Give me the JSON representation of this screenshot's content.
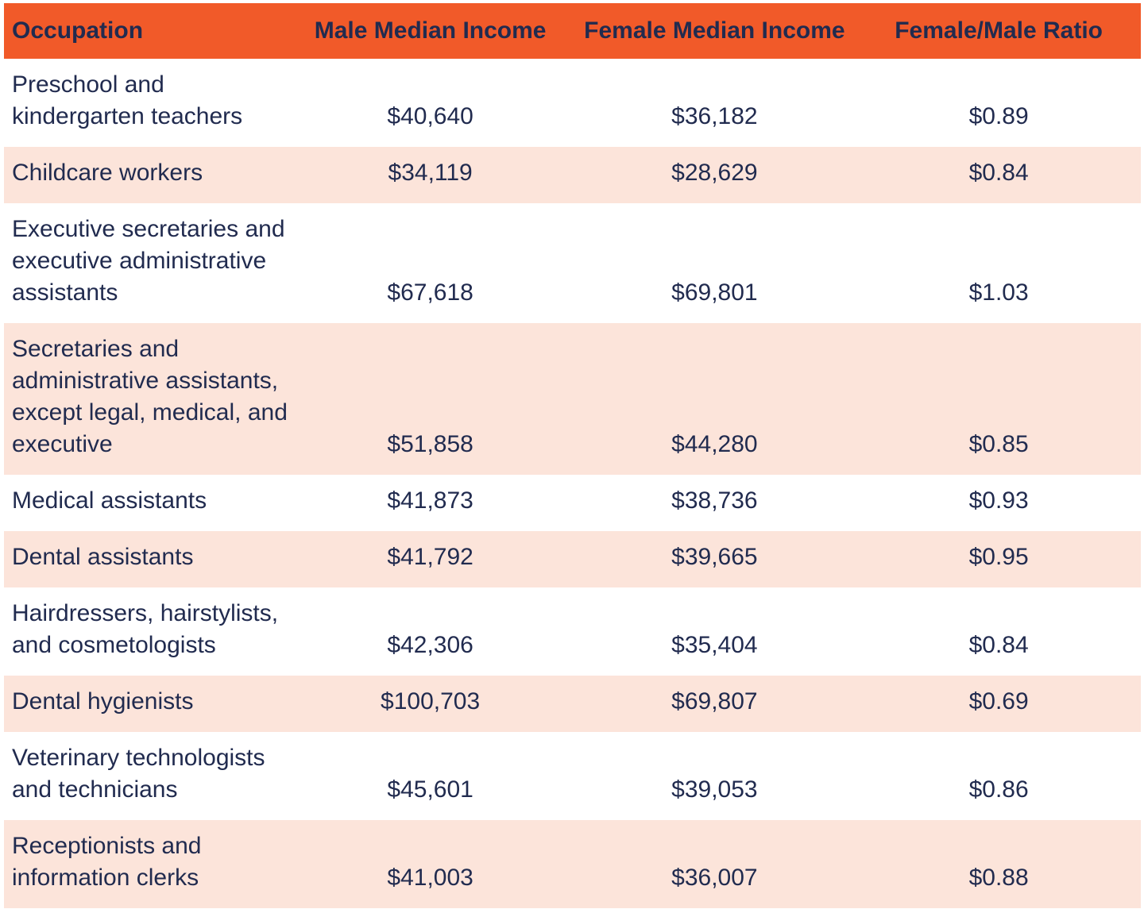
{
  "columns": [
    "Occupation",
    "Male Median Income",
    "Female Median Income",
    "Female/Male Ratio"
  ],
  "rows": [
    {
      "occupation": "Preschool and\nkindergarten teachers",
      "male": "$40,640",
      "female": "$36,182",
      "ratio": "$0.89"
    },
    {
      "occupation": "Childcare workers",
      "male": "$34,119",
      "female": "$28,629",
      "ratio": "$0.84"
    },
    {
      "occupation": "Executive secretaries and\nexecutive administrative\nassistants",
      "male": "$67,618",
      "female": "$69,801",
      "ratio": "$1.03"
    },
    {
      "occupation": "Secretaries and\nadministrative assistants,\nexcept legal, medical, and\nexecutive",
      "male": "$51,858",
      "female": "$44,280",
      "ratio": "$0.85"
    },
    {
      "occupation": "Medical assistants",
      "male": "$41,873",
      "female": "$38,736",
      "ratio": "$0.93"
    },
    {
      "occupation": "Dental assistants",
      "male": "$41,792",
      "female": "$39,665",
      "ratio": "$0.95"
    },
    {
      "occupation": "Hairdressers, hairstylists,\nand cosmetologists",
      "male": "$42,306",
      "female": "$35,404",
      "ratio": "$0.84"
    },
    {
      "occupation": "Dental hygienists",
      "male": "$100,703",
      "female": "$69,807",
      "ratio": "$0.69"
    },
    {
      "occupation": "Veterinary technologists\nand technicians",
      "male": "$45,601",
      "female": "$39,053",
      "ratio": "$0.86"
    },
    {
      "occupation": "Receptionists and\ninformation clerks",
      "male": "$41,003",
      "female": "$36,007",
      "ratio": "$0.88"
    }
  ],
  "colors": {
    "header_bg": "#F15A29",
    "row_bg": "#FFFFFF",
    "row_alt_bg": "#FCE4DA",
    "text": "#212B4F"
  },
  "chart_data": {
    "type": "table",
    "title": "",
    "columns": [
      "Occupation",
      "Male Median Income",
      "Female Median Income",
      "Female/Male Ratio"
    ],
    "rows": [
      [
        "Preschool and kindergarten teachers",
        40640,
        36182,
        0.89
      ],
      [
        "Childcare workers",
        34119,
        28629,
        0.84
      ],
      [
        "Executive secretaries and executive administrative assistants",
        67618,
        69801,
        1.03
      ],
      [
        "Secretaries and administrative assistants, except legal, medical, and executive",
        51858,
        44280,
        0.85
      ],
      [
        "Medical assistants",
        41873,
        38736,
        0.93
      ],
      [
        "Dental assistants",
        41792,
        39665,
        0.95
      ],
      [
        "Hairdressers, hairstylists, and cosmetologists",
        42306,
        35404,
        0.84
      ],
      [
        "Dental hygienists",
        100703,
        69807,
        0.69
      ],
      [
        "Veterinary technologists and technicians",
        45601,
        39053,
        0.86
      ],
      [
        "Receptionists and information clerks",
        41003,
        36007,
        0.88
      ]
    ],
    "layout_hints": {
      "header_background": "#F15A29",
      "zebra_striping": "odd rows white, even rows light peach",
      "first_column_align": "left",
      "value_columns_align": "center"
    }
  }
}
